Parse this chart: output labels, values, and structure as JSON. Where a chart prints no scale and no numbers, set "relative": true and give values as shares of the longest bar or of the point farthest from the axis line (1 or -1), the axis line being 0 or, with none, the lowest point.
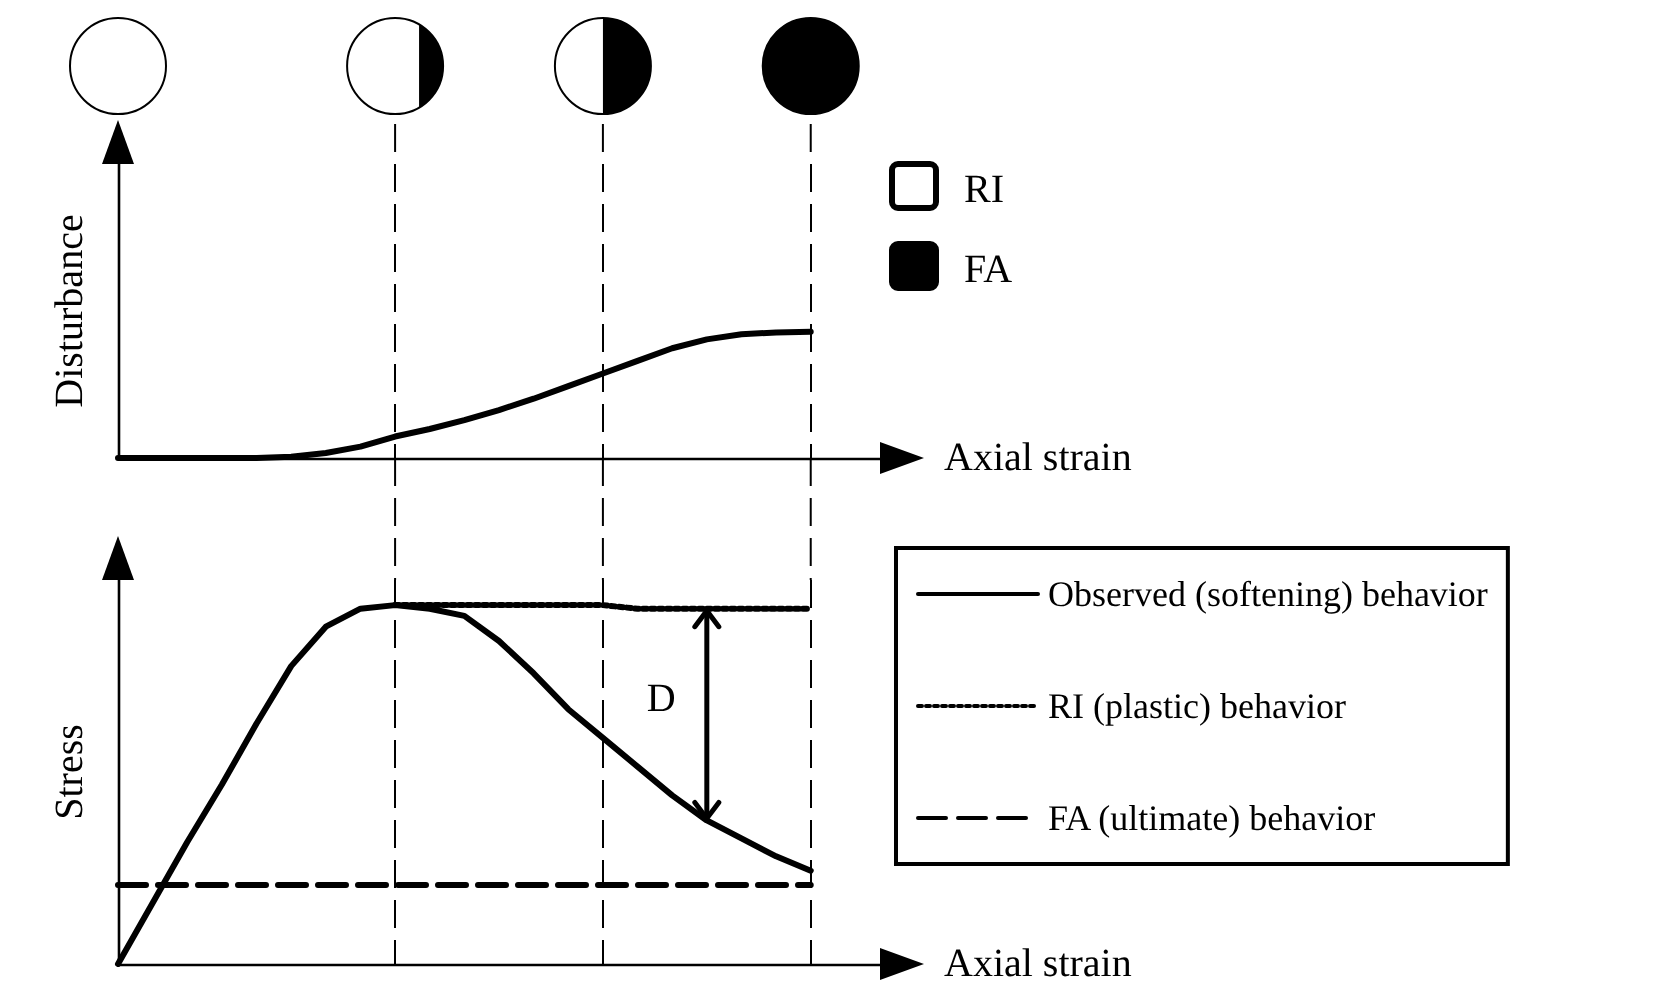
{
  "chart_data": [
    {
      "type": "line",
      "ylabel": "Disturbance",
      "xlabel": "Axial strain",
      "relative": true,
      "marker": "none",
      "grid": "x",
      "categories": [
        null,
        null,
        null,
        null,
        null,
        null,
        null,
        null,
        null,
        null,
        null,
        null,
        null,
        null,
        null,
        null,
        null,
        null,
        null,
        null,
        null,
        null,
        null
      ],
      "series": [
        {
          "color": "#000000",
          "line_style": "solid",
          "values": [
            0,
            0,
            0,
            0,
            0,
            0.01,
            0.04,
            0.09,
            0.17,
            0.23,
            0.3,
            0.38,
            0.47,
            0.57,
            0.67,
            0.77,
            0.87,
            0.94,
            0.98,
            0.995,
            1.0,
            null,
            null
          ]
        }
      ],
      "annotations": [
        "RI",
        "FA"
      ]
    },
    {
      "type": "line",
      "ylabel": "Stress",
      "xlabel": "Axial strain",
      "relative": true,
      "marker": "none",
      "legend": "right",
      "grid": "x",
      "categories": [
        null,
        null,
        null,
        null,
        null,
        null,
        null,
        null,
        null,
        null,
        null,
        null,
        null,
        null,
        null,
        null,
        null,
        null,
        null,
        null,
        null,
        null,
        null
      ],
      "series": [
        {
          "name": "Observed (softening) behavior",
          "color": "#000000",
          "line_style": "solid",
          "values": [
            0,
            0.17,
            0.34,
            0.5,
            0.67,
            0.83,
            0.94,
            0.99,
            1.0,
            0.99,
            0.97,
            0.9,
            0.81,
            0.71,
            0.63,
            0.55,
            0.47,
            0.4,
            0.35,
            0.3,
            0.26,
            null,
            null
          ]
        },
        {
          "name": "RI (plastic) behavior",
          "color": "#000000",
          "line_style": "dotted",
          "values": [
            null,
            null,
            null,
            null,
            null,
            null,
            null,
            null,
            1.0,
            1.0,
            1.0,
            1.0,
            1.0,
            1.0,
            1.0,
            0.99,
            0.99,
            0.99,
            0.99,
            0.99,
            0.99,
            null,
            null
          ]
        },
        {
          "name": "FA (ultimate) behavior",
          "color": "#000000",
          "line_style": "dashed",
          "values": [
            0.22,
            0.22,
            0.22,
            0.22,
            0.22,
            0.22,
            0.22,
            0.22,
            0.22,
            0.22,
            0.22,
            0.22,
            0.22,
            0.22,
            0.22,
            0.22,
            0.22,
            0.22,
            0.22,
            0.22,
            0.22,
            null,
            null
          ]
        }
      ],
      "annotations": [
        "D"
      ]
    }
  ]
}
